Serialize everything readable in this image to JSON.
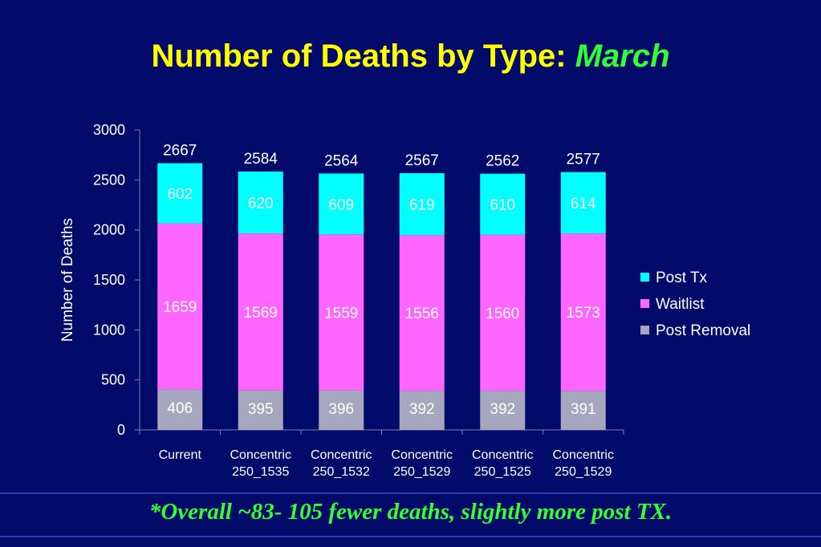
{
  "title": {
    "main": "Number of Deaths by Type: ",
    "accent": "March"
  },
  "footer": {
    "note": "*Overall ~83- 105 fewer deaths, slightly more post TX."
  },
  "colors": {
    "background": "#020A6A",
    "post_tx": "#00FFFF",
    "waitlist": "#FF66FF",
    "post_removal": "#A6A6BF",
    "title": "#FFFF00",
    "accent": "#33FF33"
  },
  "chart_data": {
    "type": "bar",
    "stacked": true,
    "categories": [
      [
        "Current"
      ],
      [
        "Concentric",
        "250_1535"
      ],
      [
        "Concentric",
        "250_1532"
      ],
      [
        "Concentric",
        "250_1529"
      ],
      [
        "Concentric",
        "250_1525"
      ],
      [
        "Concentric",
        "250_1529"
      ]
    ],
    "series": [
      {
        "name": "Post Removal",
        "values": [
          406,
          395,
          396,
          392,
          392,
          391
        ]
      },
      {
        "name": "Waitlist",
        "values": [
          1659,
          1569,
          1559,
          1556,
          1560,
          1573
        ]
      },
      {
        "name": "Post Tx",
        "values": [
          602,
          620,
          609,
          619,
          610,
          614
        ]
      }
    ],
    "totals": [
      2667,
      2584,
      2564,
      2567,
      2562,
      2577
    ],
    "ylabel": "Number of Deaths",
    "xlabel": "",
    "ylim": [
      0,
      3000
    ],
    "yticks": [
      0,
      500,
      1000,
      1500,
      2000,
      2500,
      3000
    ],
    "legend": {
      "position": "right",
      "order": [
        "Post Tx",
        "Waitlist",
        "Post Removal"
      ]
    },
    "grid": false
  }
}
